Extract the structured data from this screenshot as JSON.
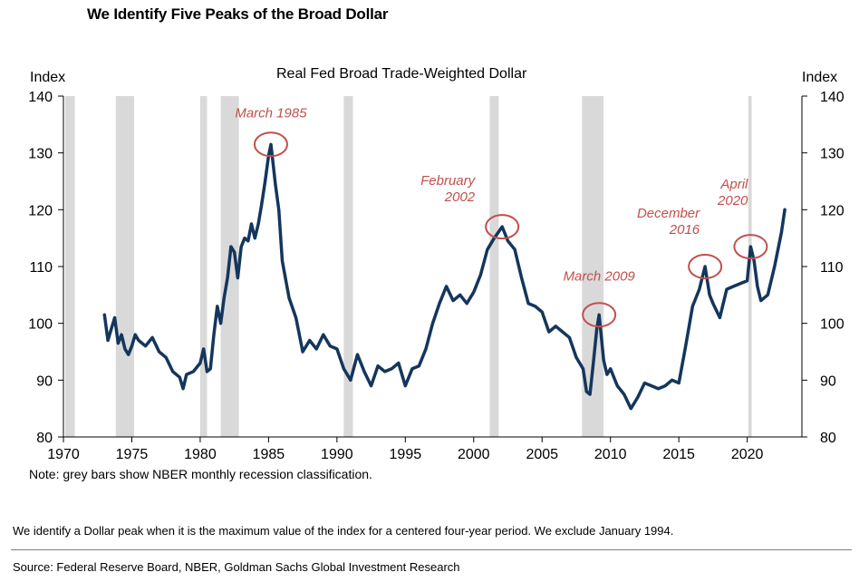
{
  "header": {
    "title": "We Identify Five Peaks of the Broad Dollar"
  },
  "footer": {
    "description": "We identify a Dollar peak when it is the maximum value of the index for a centered four-year period. We exclude January 1994.",
    "source": "Source: Federal Reserve Board, NBER, Goldman Sachs Global Investment Research"
  },
  "chart_data": {
    "type": "line",
    "title": "Real Fed Broad Trade-Weighted Dollar",
    "ylabel_left": "Index",
    "ylabel_right": "Index",
    "note": "Note: grey bars show NBER monthly recession classification.",
    "xlim": [
      1970,
      2024
    ],
    "ylim": [
      80,
      140
    ],
    "x_ticks": [
      "1970",
      "1975",
      "1980",
      "1985",
      "1990",
      "1995",
      "2000",
      "2005",
      "2010",
      "2015",
      "2020"
    ],
    "y_ticks": [
      "80",
      "90",
      "100",
      "110",
      "120",
      "130",
      "140"
    ],
    "grid": false,
    "line_color": "#14365d",
    "recession_color": "#d9d9d9",
    "annotation_color": "#c0504d",
    "recessions": [
      [
        1969.92,
        1970.83
      ],
      [
        1973.83,
        1975.17
      ],
      [
        1980.0,
        1980.5
      ],
      [
        1981.5,
        1982.83
      ],
      [
        1990.5,
        1991.17
      ],
      [
        2001.17,
        2001.83
      ],
      [
        2007.92,
        2009.5
      ],
      [
        2020.08,
        2020.33
      ]
    ],
    "peaks": [
      {
        "label": "March 1985",
        "x": 1985.17,
        "y": 131.5
      },
      {
        "label": "February 2002",
        "x": 2002.08,
        "y": 117.0
      },
      {
        "label": "March 2009",
        "x": 2009.17,
        "y": 101.5
      },
      {
        "label": "December 2016",
        "x": 2016.92,
        "y": 110.0
      },
      {
        "label": "April 2020",
        "x": 2020.25,
        "y": 113.5
      }
    ],
    "series": [
      {
        "x": [
          1973.0,
          1973.25,
          1973.5,
          1973.75,
          1974.0,
          1974.25,
          1974.5,
          1974.75,
          1975.0,
          1975.25,
          1975.5,
          1975.75,
          1976.0,
          1976.5,
          1977.0,
          1977.5,
          1978.0,
          1978.5,
          1978.75,
          1979.0,
          1979.5,
          1980.0,
          1980.25,
          1980.5,
          1980.75,
          1981.0,
          1981.25,
          1981.5,
          1981.75,
          1982.0,
          1982.25,
          1982.5,
          1982.75,
          1983.0,
          1983.25,
          1983.5,
          1983.75,
          1984.0,
          1984.25,
          1984.5,
          1984.75,
          1985.0,
          1985.17,
          1985.5,
          1985.75,
          1986.0,
          1986.5,
          1987.0,
          1987.5,
          1988.0,
          1988.5,
          1989.0,
          1989.5,
          1990.0,
          1990.5,
          1991.0,
          1991.5,
          1992.0,
          1992.5,
          1993.0,
          1993.5,
          1994.0,
          1994.5,
          1995.0,
          1995.5,
          1996.0,
          1996.5,
          1997.0,
          1997.5,
          1998.0,
          1998.5,
          1999.0,
          1999.5,
          2000.0,
          2000.5,
          2001.0,
          2001.5,
          2002.08,
          2002.5,
          2003.0,
          2003.5,
          2004.0,
          2004.5,
          2005.0,
          2005.5,
          2006.0,
          2006.5,
          2007.0,
          2007.5,
          2008.0,
          2008.25,
          2008.5,
          2008.75,
          2009.0,
          2009.17,
          2009.5,
          2009.75,
          2010.0,
          2010.5,
          2011.0,
          2011.5,
          2012.0,
          2012.5,
          2013.0,
          2013.5,
          2014.0,
          2014.5,
          2015.0,
          2015.5,
          2016.0,
          2016.5,
          2016.92,
          2017.25,
          2017.5,
          2018.0,
          2018.5,
          2019.0,
          2019.5,
          2020.0,
          2020.25,
          2020.5,
          2020.75,
          2021.0,
          2021.5,
          2022.0,
          2022.5,
          2022.75
        ],
        "y": [
          101.5,
          97.0,
          99.0,
          101.0,
          96.5,
          98.0,
          95.5,
          94.5,
          96.0,
          98.0,
          97.0,
          96.5,
          96.0,
          97.5,
          95.0,
          94.0,
          91.5,
          90.5,
          88.5,
          91.0,
          91.5,
          93.0,
          95.5,
          91.5,
          92.0,
          98.0,
          103.0,
          100.0,
          104.5,
          108.0,
          113.5,
          112.5,
          108.0,
          113.5,
          115.0,
          114.5,
          117.5,
          115.0,
          117.5,
          121.0,
          125.0,
          129.5,
          131.5,
          124.5,
          120.0,
          111.0,
          104.5,
          101.0,
          95.0,
          97.0,
          95.5,
          98.0,
          96.0,
          95.5,
          92.0,
          90.0,
          94.5,
          91.5,
          89.0,
          92.5,
          91.5,
          92.0,
          93.0,
          89.0,
          92.0,
          92.5,
          95.5,
          100.0,
          103.5,
          106.5,
          104.0,
          105.0,
          103.5,
          105.5,
          108.5,
          113.0,
          115.0,
          117.0,
          114.5,
          113.0,
          108.0,
          103.5,
          103.0,
          102.0,
          98.5,
          99.5,
          98.5,
          97.5,
          94.0,
          92.0,
          88.0,
          87.5,
          93.0,
          99.0,
          101.5,
          93.5,
          91.0,
          92.0,
          89.0,
          87.5,
          85.0,
          87.0,
          89.5,
          89.0,
          88.5,
          89.0,
          90.0,
          89.5,
          96.0,
          103.0,
          106.0,
          110.0,
          105.0,
          103.5,
          101.0,
          106.0,
          106.5,
          107.0,
          107.5,
          113.5,
          111.0,
          106.5,
          104.0,
          105.0,
          110.0,
          116.0,
          120.0
        ]
      }
    ]
  }
}
